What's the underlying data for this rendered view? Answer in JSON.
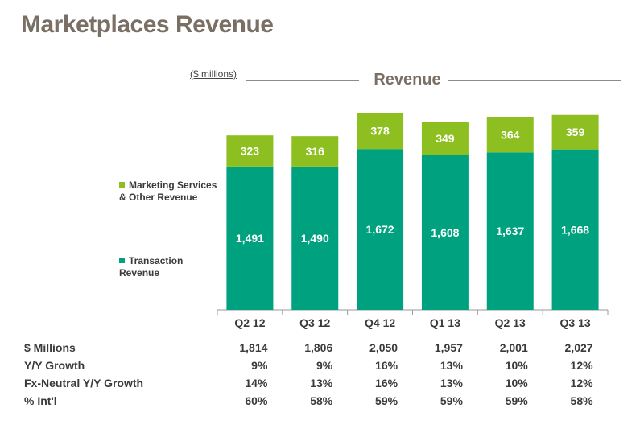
{
  "page": {
    "title": "Marketplaces Revenue",
    "units_note": "($ millions)"
  },
  "chart_data": {
    "type": "bar",
    "stacked": true,
    "title": "Revenue",
    "categories": [
      "Q2 12",
      "Q3 12",
      "Q4 12",
      "Q1 13",
      "Q2 13",
      "Q3 13"
    ],
    "series": [
      {
        "name": "Transaction Revenue",
        "values": [
          1491,
          1490,
          1672,
          1608,
          1637,
          1668
        ],
        "labels": [
          "1,491",
          "1,490",
          "1,672",
          "1,608",
          "1,637",
          "1,668"
        ],
        "color": "#00a17f"
      },
      {
        "name": "Marketing Services & Other Revenue",
        "values": [
          323,
          316,
          378,
          349,
          364,
          359
        ],
        "labels": [
          "323",
          "316",
          "378",
          "349",
          "364",
          "359"
        ],
        "color": "#8cbf1f"
      }
    ],
    "grid": false,
    "legend": "left"
  },
  "legend": [
    {
      "label": "Marketing Services\n& Other Revenue",
      "color": "#8cbf1f"
    },
    {
      "label": "Transaction\nRevenue",
      "color": "#00a17f"
    }
  ],
  "table": {
    "rows": [
      {
        "label": "$ Millions",
        "values": [
          "1,814",
          "1,806",
          "2,050",
          "1,957",
          "2,001",
          "2,027"
        ]
      },
      {
        "label": "Y/Y Growth",
        "values": [
          "9%",
          "9%",
          "16%",
          "13%",
          "10%",
          "12%"
        ]
      },
      {
        "label": "Fx-Neutral Y/Y Growth",
        "values": [
          "14%",
          "13%",
          "16%",
          "13%",
          "10%",
          "12%"
        ]
      },
      {
        "label": "% Int'l",
        "values": [
          "60%",
          "58%",
          "59%",
          "59%",
          "59%",
          "58%"
        ]
      }
    ]
  }
}
